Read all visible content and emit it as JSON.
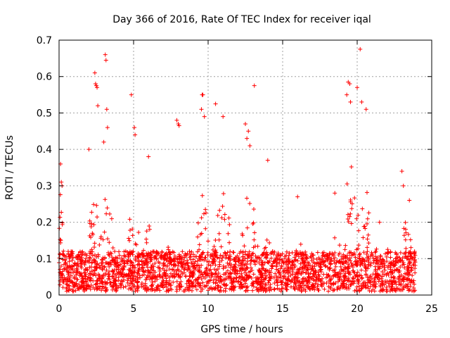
{
  "chart_data": {
    "type": "scatter",
    "title": "Day 366 of 2016, Rate Of TEC Index for receiver iqal",
    "xlabel": "GPS time / hours",
    "ylabel": "ROTI / TECUs",
    "xlim": [
      0,
      25
    ],
    "ylim": [
      0,
      0.7
    ],
    "xticks": [
      0,
      5,
      10,
      15,
      20,
      25
    ],
    "yticks": [
      0,
      0.1,
      0.2,
      0.3,
      0.4,
      0.5,
      0.6,
      0.7
    ],
    "xtick_labels": [
      "0",
      "5",
      "10",
      "15",
      "20",
      "25"
    ],
    "ytick_labels": [
      "0",
      "0.1",
      "0.2",
      "0.3",
      "0.4",
      "0.5",
      "0.6",
      "0.7"
    ],
    "grid": true,
    "marker": "+",
    "series_color": "#ff0000",
    "x_data_range": [
      0,
      23.9
    ],
    "series": [
      {
        "name": "ROTI",
        "points": [
          [
            2.4,
            0.61
          ],
          [
            2.45,
            0.58
          ],
          [
            2.5,
            0.575
          ],
          [
            2.55,
            0.57
          ],
          [
            2.6,
            0.52
          ],
          [
            3.1,
            0.66
          ],
          [
            3.15,
            0.645
          ],
          [
            3.2,
            0.51
          ],
          [
            3.25,
            0.46
          ],
          [
            4.85,
            0.55
          ],
          [
            5.05,
            0.46
          ],
          [
            5.1,
            0.44
          ],
          [
            7.9,
            0.48
          ],
          [
            8.0,
            0.47
          ],
          [
            8.05,
            0.465
          ],
          [
            9.6,
            0.55
          ],
          [
            9.65,
            0.55
          ],
          [
            9.55,
            0.51
          ],
          [
            9.75,
            0.49
          ],
          [
            10.5,
            0.525
          ],
          [
            11.0,
            0.49
          ],
          [
            12.5,
            0.47
          ],
          [
            12.7,
            0.45
          ],
          [
            12.6,
            0.43
          ],
          [
            12.8,
            0.41
          ],
          [
            13.1,
            0.575
          ],
          [
            19.4,
            0.585
          ],
          [
            19.5,
            0.58
          ],
          [
            19.3,
            0.55
          ],
          [
            19.55,
            0.53
          ],
          [
            20.0,
            0.57
          ],
          [
            20.2,
            0.675
          ],
          [
            20.3,
            0.53
          ],
          [
            20.6,
            0.51
          ],
          [
            23.0,
            0.34
          ],
          [
            23.1,
            0.3
          ],
          [
            23.5,
            0.26
          ],
          [
            0.1,
            0.36
          ],
          [
            0.15,
            0.31
          ],
          [
            0.2,
            0.3
          ],
          [
            2.0,
            0.4
          ],
          [
            3.0,
            0.42
          ],
          [
            6.0,
            0.38
          ],
          [
            14.0,
            0.37
          ],
          [
            16.0,
            0.27
          ],
          [
            18.5,
            0.28
          ],
          [
            21.5,
            0.2
          ]
        ]
      }
    ]
  }
}
